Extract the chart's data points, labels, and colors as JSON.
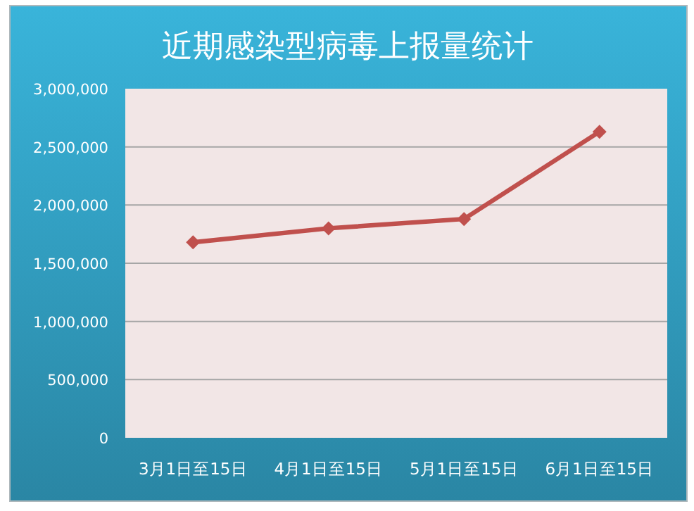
{
  "chart_data": {
    "type": "line",
    "title": "近期感染型病毒上报量统计",
    "categories": [
      "3月1日至15日",
      "4月1日至15日",
      "5月1日至15日",
      "6月1日至15日"
    ],
    "series": [
      {
        "color": "#c0504d",
        "values": [
          1680000,
          1800000,
          1880000,
          2630000
        ]
      }
    ],
    "ylim": [
      0,
      3000000
    ],
    "yticks": [
      0,
      {
        "value": 500000,
        "label": "500,000"
      },
      {
        "value": 1000000,
        "label": "1,000,000"
      },
      {
        "value": 1500000,
        "label": "1,500,000"
      },
      {
        "value": 2000000,
        "label": "2,000,000"
      },
      {
        "value": 2500000,
        "label": "2,500,000"
      },
      {
        "value": 3000000,
        "label": "3,000,000"
      }
    ],
    "grid": "y",
    "marker": "diamond",
    "line_style": "solid"
  }
}
